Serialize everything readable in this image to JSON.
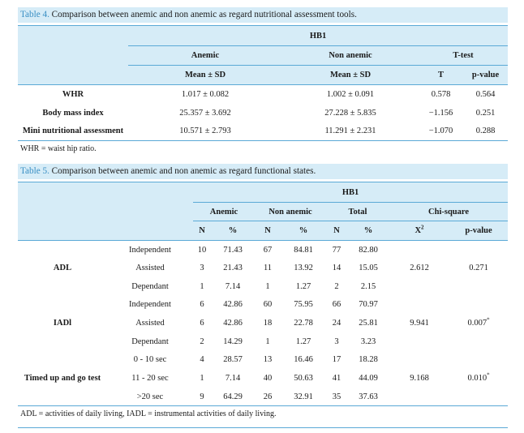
{
  "table4": {
    "caption_label": "Table 4.",
    "caption_text": "Comparison between anemic and non anemic as regard nutritional assessment tools.",
    "group_header": "HB1",
    "col_anemic": "Anemic",
    "col_non_anemic": "Non anemic",
    "col_ttest": "T-test",
    "sub_mean1": "Mean ± SD",
    "sub_mean2": "Mean ± SD",
    "sub_t": "T",
    "sub_p": "p-value",
    "rows": [
      {
        "label": "WHR",
        "anemic": "1.017 ± 0.082",
        "non_anemic": "1.002 ± 0.091",
        "t": "0.578",
        "p": "0.564"
      },
      {
        "label": "Body mass index",
        "anemic": "25.357 ± 3.692",
        "non_anemic": "27.228 ± 5.835",
        "t": "−1.156",
        "p": "0.251"
      },
      {
        "label": "Mini nutritional assessment",
        "anemic": "10.571 ± 2.793",
        "non_anemic": "11.291 ± 2.231",
        "t": "−1.070",
        "p": "0.288"
      }
    ],
    "footnote": "WHR = waist hip ratio."
  },
  "table5": {
    "caption_label": "Table 5.",
    "caption_text": "Comparison between anemic and non anemic as regard functional states.",
    "group_header": "HB1",
    "col_anemic": "Anemic",
    "col_non_anemic": "Non anemic",
    "col_total": "Total",
    "col_chi": "Chi-square",
    "sub_n": "N",
    "sub_pct": "%",
    "sub_x2": "X",
    "sub_x2_sup": "2",
    "sub_p": "p-value",
    "groups": [
      {
        "name": "ADL",
        "x2": "2.612",
        "p": "0.271",
        "p_sup": "",
        "rows": [
          {
            "cat": "Independent",
            "n1": "10",
            "p1": "71.43",
            "n2": "67",
            "p2": "84.81",
            "n3": "77",
            "p3": "82.80"
          },
          {
            "cat": "Assisted",
            "n1": "3",
            "p1": "21.43",
            "n2": "11",
            "p2": "13.92",
            "n3": "14",
            "p3": "15.05"
          },
          {
            "cat": "Dependant",
            "n1": "1",
            "p1": "7.14",
            "n2": "1",
            "p2": "1.27",
            "n3": "2",
            "p3": "2.15"
          }
        ]
      },
      {
        "name": "IADl",
        "x2": "9.941",
        "p": "0.007",
        "p_sup": "*",
        "rows": [
          {
            "cat": "Independent",
            "n1": "6",
            "p1": "42.86",
            "n2": "60",
            "p2": "75.95",
            "n3": "66",
            "p3": "70.97"
          },
          {
            "cat": "Assisted",
            "n1": "6",
            "p1": "42.86",
            "n2": "18",
            "p2": "22.78",
            "n3": "24",
            "p3": "25.81"
          },
          {
            "cat": "Dependant",
            "n1": "2",
            "p1": "14.29",
            "n2": "1",
            "p2": "1.27",
            "n3": "3",
            "p3": "3.23"
          }
        ]
      },
      {
        "name": "Timed up and go test",
        "x2": "9.168",
        "p": "0.010",
        "p_sup": "*",
        "rows": [
          {
            "cat": "0 - 10 sec",
            "n1": "4",
            "p1": "28.57",
            "n2": "13",
            "p2": "16.46",
            "n3": "17",
            "p3": "18.28"
          },
          {
            "cat": "11 - 20 sec",
            "n1": "1",
            "p1": "7.14",
            "n2": "40",
            "p2": "50.63",
            "n3": "41",
            "p3": "44.09"
          },
          {
            "cat": ">20 sec",
            "n1": "9",
            "p1": "64.29",
            "n2": "26",
            "p2": "32.91",
            "n3": "35",
            "p3": "37.63"
          }
        ]
      }
    ],
    "footnote": "ADL = activities of daily living, IADL = instrumental activities of daily living."
  },
  "colors": {
    "header_bg": "#d6ecf7",
    "rule": "#5aa9d6",
    "caption_label": "#3a8fc4"
  }
}
